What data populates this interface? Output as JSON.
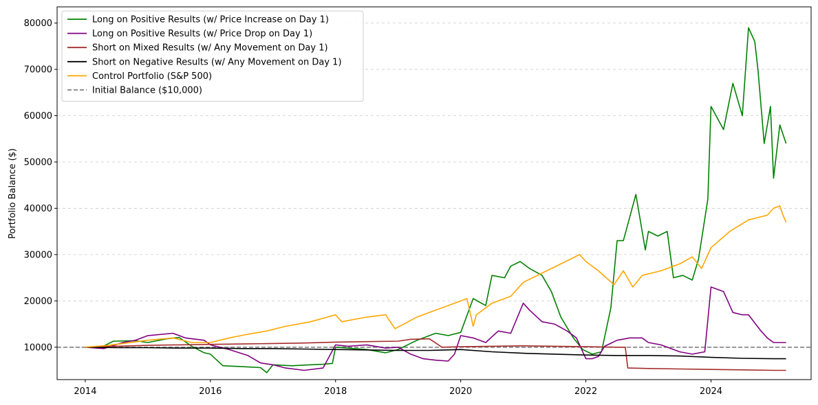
{
  "chart_data": {
    "type": "line",
    "ylabel": "Portfolio Balance ($)",
    "xlim": [
      2013.55,
      2025.6
    ],
    "ylim": [
      3000,
      83500
    ],
    "grid": "y-axis dashed",
    "legend_placement": "top-left",
    "x_ticks": [
      2014,
      2016,
      2018,
      2020,
      2022,
      2024
    ],
    "x_tick_labels": [
      "2014",
      "2016",
      "2018",
      "2020",
      "2022",
      "2024"
    ],
    "y_ticks": [
      10000,
      20000,
      30000,
      40000,
      50000,
      60000,
      70000,
      80000
    ],
    "y_tick_labels": [
      "10000",
      "20000",
      "30000",
      "40000",
      "50000",
      "60000",
      "70000",
      "80000"
    ],
    "reference_line": {
      "label": "Initial Balance ($10,000)",
      "value": 10000,
      "color": "#808080",
      "style": "dashed"
    },
    "series": [
      {
        "name": "Long on Positive Results (w/ Price Increase on Day 1)",
        "color": "#008000",
        "x": [
          2014.0,
          2014.3,
          2014.45,
          2014.8,
          2015.0,
          2015.3,
          2015.5,
          2015.7,
          2015.9,
          2016.0,
          2016.2,
          2016.5,
          2016.8,
          2016.9,
          2017.0,
          2017.3,
          2017.6,
          2017.8,
          2017.95,
          2018.0,
          2018.2,
          2018.5,
          2018.8,
          2019.0,
          2019.3,
          2019.6,
          2019.8,
          2020.0,
          2020.2,
          2020.4,
          2020.5,
          2020.7,
          2020.8,
          2020.95,
          2021.1,
          2021.3,
          2021.45,
          2021.6,
          2021.8,
          2021.95,
          2022.1,
          2022.25,
          2022.4,
          2022.5,
          2022.6,
          2022.8,
          2022.95,
          2023.0,
          2023.15,
          2023.3,
          2023.4,
          2023.55,
          2023.7,
          2023.8,
          2023.95,
          2024.0,
          2024.2,
          2024.35,
          2024.5,
          2024.6,
          2024.7,
          2024.75,
          2024.85,
          2024.95,
          2025.0,
          2025.1,
          2025.2
        ],
        "values": [
          10000,
          10300,
          11300,
          11400,
          11000,
          11800,
          12100,
          10200,
          8800,
          8500,
          6000,
          5800,
          5600,
          4500,
          6200,
          6000,
          6200,
          6300,
          6500,
          10000,
          9800,
          9500,
          8800,
          9500,
          11500,
          13000,
          12500,
          13200,
          20500,
          19000,
          25500,
          25000,
          27500,
          28500,
          27000,
          25500,
          22000,
          16500,
          12000,
          9500,
          8500,
          9000,
          18500,
          33000,
          33000,
          43000,
          31000,
          35000,
          34000,
          35000,
          25000,
          25500,
          24500,
          29000,
          42000,
          62000,
          57000,
          67000,
          60000,
          79000,
          76000,
          70000,
          54000,
          62000,
          46500,
          58000,
          54000
        ]
      },
      {
        "name": "Long on Positive Results (w/ Price Drop on Day 1)",
        "color": "#800080",
        "x": [
          2014.0,
          2014.3,
          2014.6,
          2014.8,
          2015.0,
          2015.4,
          2015.6,
          2015.9,
          2016.0,
          2016.3,
          2016.6,
          2016.8,
          2017.0,
          2017.2,
          2017.5,
          2017.8,
          2018.0,
          2018.2,
          2018.5,
          2018.8,
          2019.0,
          2019.2,
          2019.4,
          2019.6,
          2019.8,
          2019.9,
          2020.0,
          2020.2,
          2020.4,
          2020.6,
          2020.8,
          2021.0,
          2021.1,
          2021.3,
          2021.5,
          2021.7,
          2021.85,
          2022.0,
          2022.1,
          2022.2,
          2022.3,
          2022.5,
          2022.7,
          2022.9,
          2023.0,
          2023.2,
          2023.5,
          2023.7,
          2023.9,
          2024.0,
          2024.2,
          2024.35,
          2024.5,
          2024.6,
          2024.8,
          2024.9,
          2025.0,
          2025.2
        ],
        "values": [
          10000,
          9700,
          11000,
          11500,
          12500,
          13000,
          12000,
          11500,
          10500,
          9500,
          8200,
          6600,
          6200,
          5500,
          5000,
          5500,
          10500,
          10200,
          10500,
          9800,
          10000,
          8500,
          7500,
          7200,
          7000,
          8500,
          12500,
          12000,
          11000,
          13500,
          13000,
          19500,
          18000,
          15500,
          15000,
          13500,
          12000,
          7500,
          7500,
          8000,
          10200,
          11500,
          12000,
          12000,
          11000,
          10500,
          9000,
          8500,
          9000,
          23000,
          22000,
          17500,
          17000,
          17000,
          13500,
          12000,
          11000,
          11000
        ]
      },
      {
        "name": "Short on Mixed Results (w/ Any Movement on Day 1)",
        "color": "#A52A2A",
        "x": [
          2014.0,
          2014.5,
          2015.0,
          2015.5,
          2016.0,
          2016.5,
          2017.0,
          2017.5,
          2018.0,
          2018.5,
          2019.0,
          2019.2,
          2019.5,
          2019.7,
          2020.0,
          2020.5,
          2021.0,
          2021.5,
          2022.0,
          2022.5,
          2022.63,
          2022.67,
          2023.0,
          2023.5,
          2024.0,
          2024.5,
          2025.0,
          2025.2
        ],
        "values": [
          10000,
          10200,
          10400,
          10500,
          10600,
          10700,
          10800,
          10900,
          11100,
          11200,
          11300,
          11700,
          11800,
          10000,
          10100,
          10200,
          10300,
          10200,
          10100,
          10000,
          10000,
          5500,
          5400,
          5300,
          5200,
          5100,
          5000,
          5000
        ]
      },
      {
        "name": "Short on Negative Results (w/ Any Movement on Day 1)",
        "color": "#000000",
        "x": [
          2014.0,
          2014.5,
          2015.0,
          2015.5,
          2016.0,
          2016.5,
          2017.0,
          2017.5,
          2018.0,
          2018.5,
          2019.0,
          2019.5,
          2020.0,
          2020.5,
          2021.0,
          2021.5,
          2022.0,
          2022.5,
          2023.0,
          2023.5,
          2024.0,
          2024.5,
          2025.0,
          2025.2
        ],
        "values": [
          10000,
          9900,
          9900,
          9800,
          9800,
          9700,
          9700,
          9600,
          9500,
          9400,
          9300,
          9300,
          9500,
          9000,
          8700,
          8500,
          8300,
          8200,
          8200,
          8100,
          7800,
          7600,
          7500,
          7500
        ]
      },
      {
        "name": "Control Portfolio (S&P 500)",
        "color": "#FFA500",
        "x": [
          2014.0,
          2014.3,
          2014.6,
          2015.0,
          2015.4,
          2015.7,
          2016.0,
          2016.3,
          2016.6,
          2016.9,
          2017.2,
          2017.6,
          2018.0,
          2018.1,
          2018.5,
          2018.8,
          2018.95,
          2019.3,
          2019.6,
          2019.9,
          2020.1,
          2020.2,
          2020.25,
          2020.5,
          2020.8,
          2021.0,
          2021.3,
          2021.6,
          2021.9,
          2022.0,
          2022.2,
          2022.45,
          2022.6,
          2022.75,
          2022.9,
          2023.2,
          2023.5,
          2023.7,
          2023.85,
          2024.0,
          2024.3,
          2024.6,
          2024.9,
          2025.0,
          2025.1,
          2025.15,
          2025.2
        ],
        "values": [
          10000,
          10300,
          10800,
          11500,
          12000,
          11000,
          11000,
          12000,
          12800,
          13500,
          14500,
          15500,
          17000,
          15500,
          16500,
          17000,
          14000,
          16500,
          18000,
          19500,
          20500,
          14500,
          17000,
          19500,
          21000,
          24000,
          26000,
          28000,
          30000,
          28500,
          26500,
          23500,
          26500,
          23000,
          25500,
          26500,
          28000,
          29500,
          27000,
          31500,
          35000,
          37500,
          38500,
          40000,
          40500,
          38500,
          37000
        ]
      }
    ]
  }
}
